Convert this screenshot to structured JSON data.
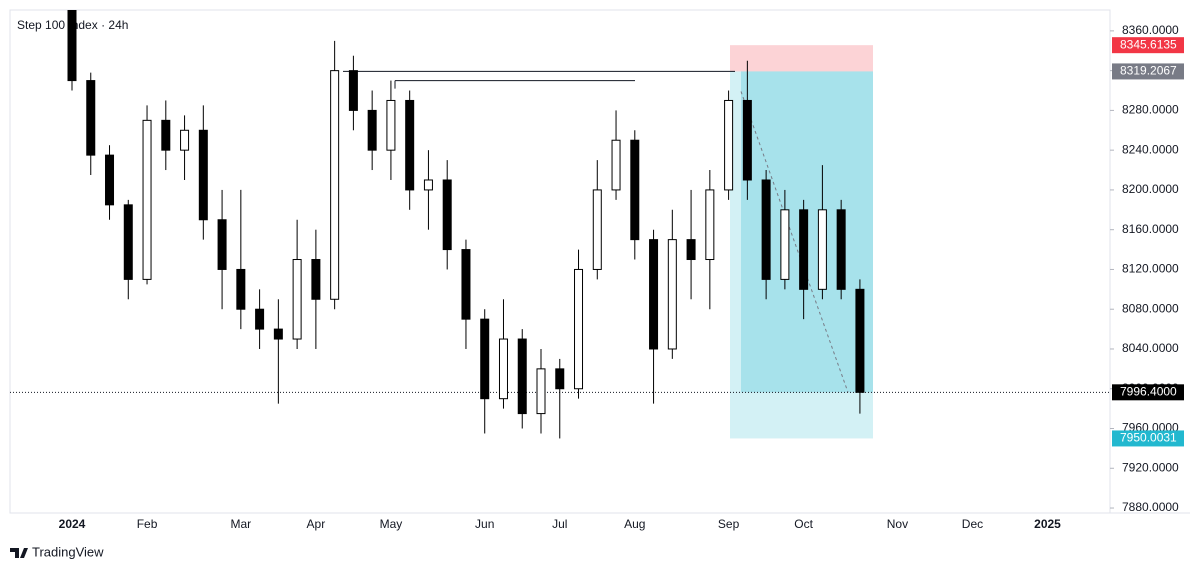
{
  "chart_data": {
    "type": "candlestick",
    "title": "Step 100 Index · 24h",
    "brand": "TradingView",
    "categories": [
      "2024",
      null,
      null,
      null,
      "Feb",
      null,
      null,
      null,
      null,
      "Mar",
      null,
      null,
      null,
      "Apr",
      null,
      null,
      null,
      "May",
      null,
      null,
      null,
      null,
      "Jun",
      null,
      null,
      null,
      "Jul",
      null,
      null,
      null,
      "Aug",
      null,
      null,
      null,
      null,
      "Sep",
      null,
      null,
      null,
      "Oct",
      null,
      null,
      null,
      null,
      "Nov",
      null,
      null,
      null,
      "Dec",
      null,
      null,
      null,
      "2025",
      null,
      null
    ],
    "open": [
      8385,
      8310,
      8235,
      8185,
      8110,
      8270,
      8240,
      8260,
      8170,
      8120,
      8080,
      8060,
      8050,
      8130,
      8090,
      8320,
      8280,
      8240,
      8290,
      8200,
      8210,
      8140,
      8070,
      7990,
      8050,
      7975,
      8020,
      8000,
      8120,
      8200,
      8250,
      8150,
      8040,
      8150,
      8130,
      8200,
      8290,
      8210,
      8110,
      8180,
      8100,
      8180,
      8100,
      null,
      null,
      null,
      null,
      null,
      null,
      null,
      null,
      null,
      null,
      null,
      null
    ],
    "high": [
      8392,
      8318,
      8245,
      8190,
      8285,
      8290,
      8275,
      8285,
      8200,
      8200,
      8100,
      8090,
      8170,
      8160,
      8350,
      8335,
      8300,
      8310,
      8300,
      8240,
      8230,
      8150,
      8080,
      8090,
      8060,
      8040,
      8030,
      8140,
      8230,
      8280,
      8260,
      8160,
      8180,
      8200,
      8220,
      8300,
      8330,
      8220,
      8200,
      8190,
      8225,
      8190,
      8110,
      null,
      null,
      null,
      null,
      null,
      null,
      null,
      null,
      null,
      null,
      null,
      null
    ],
    "low": [
      8300,
      8215,
      8170,
      8090,
      8105,
      8220,
      8210,
      8150,
      8080,
      8060,
      8040,
      7985,
      8040,
      8040,
      8080,
      8260,
      8220,
      8210,
      8180,
      8160,
      8120,
      8040,
      7955,
      7980,
      7960,
      7955,
      7950,
      7990,
      8110,
      8190,
      8130,
      7985,
      8030,
      8090,
      8080,
      8190,
      8190,
      8090,
      8100,
      8070,
      8090,
      8090,
      7975,
      null,
      null,
      null,
      null,
      null,
      null,
      null,
      null,
      null,
      null,
      null,
      null
    ],
    "close": [
      8310,
      8235,
      8185,
      8110,
      8270,
      8240,
      8260,
      8170,
      8120,
      8080,
      8060,
      8050,
      8130,
      8090,
      8320,
      8280,
      8240,
      8290,
      8200,
      8210,
      8140,
      8070,
      7990,
      8050,
      7975,
      8020,
      8000,
      8120,
      8200,
      8250,
      8150,
      8040,
      8150,
      8130,
      8200,
      8290,
      8210,
      8110,
      8180,
      8100,
      8180,
      8100,
      7996.4,
      null,
      null,
      null,
      null,
      null,
      null,
      null,
      null,
      null,
      null,
      null,
      null
    ],
    "ylim": [
      7875,
      8381
    ],
    "yticks": [
      {
        "value": 7880,
        "label": "7880.0000"
      },
      {
        "value": 7920,
        "label": "7920.0000"
      },
      {
        "value": 7960,
        "label": "7960.0000"
      },
      {
        "value": 8000,
        "label": "8000.0000"
      },
      {
        "value": 8040,
        "label": "8040.0000"
      },
      {
        "value": 8080,
        "label": "8080.0000"
      },
      {
        "value": 8120,
        "label": "8120.0000"
      },
      {
        "value": 8160,
        "label": "8160.0000"
      },
      {
        "value": 8200,
        "label": "8200.0000"
      },
      {
        "value": 8240,
        "label": "8240.0000"
      },
      {
        "value": 8280,
        "label": "8280.0000"
      },
      {
        "value": 8320,
        "label": "8320.0000"
      },
      {
        "value": 8360,
        "label": "8360.0000"
      }
    ],
    "price_labels": [
      {
        "value": 8345.6135,
        "label": "8345.6135",
        "color": "#f23645"
      },
      {
        "value": 8319.2067,
        "label": "8319.2067",
        "color": "#787b86"
      },
      {
        "value": 7996.4,
        "label": "7996.4000",
        "color": "#000000"
      },
      {
        "value": 7950.0031,
        "label": "7950.0031",
        "color": "#22b8cf"
      }
    ],
    "levels": [
      8319.2067,
      8310
    ],
    "position": {
      "stop": 8345.6135,
      "entry": 8319.2067,
      "target": 7950.0031
    }
  }
}
